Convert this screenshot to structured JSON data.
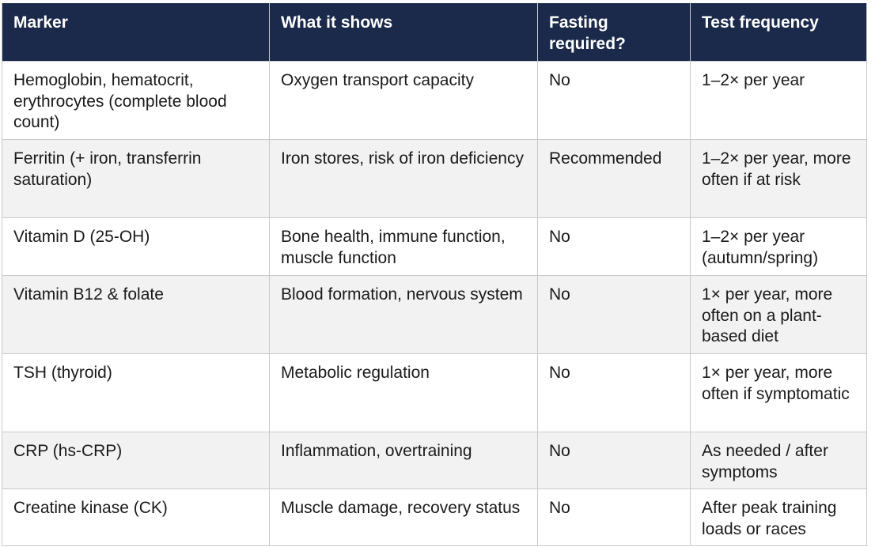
{
  "table": {
    "headers": [
      "Marker",
      "What it shows",
      "Fasting required?",
      "Test frequency"
    ],
    "rows": [
      [
        "Hemoglobin, hematocrit, erythrocytes (complete blood count)",
        "Oxygen transport capacity",
        "No",
        "1–2× per year"
      ],
      [
        "Ferritin (+ iron, transferrin saturation)",
        "Iron stores, risk of iron deficiency",
        "Recommended",
        "1–2× per year, more often if at risk"
      ],
      [
        "Vitamin D (25-OH)",
        "Bone health, immune function, muscle function",
        "No",
        "1–2× per year (autumn/spring)"
      ],
      [
        "Vitamin B12 & folate",
        "Blood formation, nervous system",
        "No",
        "1× per year, more often on a plant-based diet"
      ],
      [
        "TSH (thyroid)",
        "Metabolic regulation",
        "No",
        "1× per year, more often if symptomatic"
      ],
      [
        "CRP (hs-CRP)",
        "Inflammation, overtraining",
        "No",
        "As needed / after symptoms"
      ],
      [
        "Creatine kinase (CK)",
        "Muscle damage, recovery status",
        "No",
        "After peak training loads or races"
      ]
    ]
  },
  "colors": {
    "header_background": "#1b2a4a",
    "header_text": "#ffffff",
    "row_alt_background": "#f2f2f2",
    "border": "#c9c9c9"
  }
}
